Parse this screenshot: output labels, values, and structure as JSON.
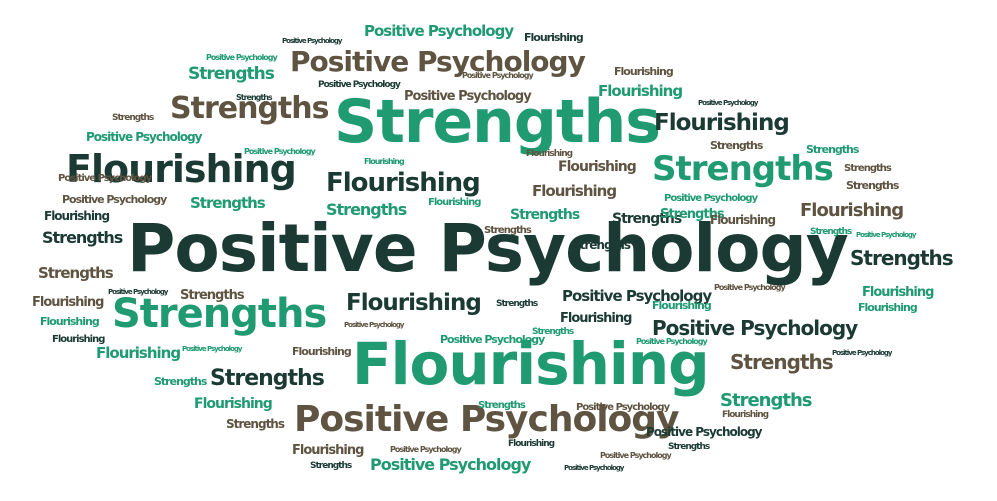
{
  "word_cloud": {
    "words": [
      {
        "text": "Positive Psychology",
        "color": "#1b3a33"
      },
      {
        "text": "Strengths",
        "color": "#1f9a71"
      },
      {
        "text": "Flourishing",
        "color": "#1f9a71"
      },
      {
        "text": "Positive Psychology",
        "color": "#5f5442"
      },
      {
        "text": "Flourishing",
        "color": "#1b3a33"
      },
      {
        "text": "Strengths",
        "color": "#1f9a71"
      },
      {
        "text": "Strengths",
        "color": "#1f9a71"
      },
      {
        "text": "Positive Psychology",
        "color": "#5f5442"
      },
      {
        "text": "Strengths",
        "color": "#5f5442"
      },
      {
        "text": "Flourishing",
        "color": "#1b3a33"
      },
      {
        "text": "Flourishing",
        "color": "#1b3a33"
      },
      {
        "text": "Flourishing",
        "color": "#1b3a33"
      },
      {
        "text": "Positive Psychology",
        "color": "#1b3a33"
      },
      {
        "text": "Strengths",
        "color": "#1b3a33"
      },
      {
        "text": "Strengths",
        "color": "#5f5442"
      },
      {
        "text": "Strengths",
        "color": "#1b3a33"
      },
      {
        "text": "Flourishing",
        "color": "#5f5442"
      },
      {
        "text": "Strengths",
        "color": "#1f9a71"
      },
      {
        "text": "Positive Psychology",
        "color": "#1f9a71"
      },
      {
        "text": "Positive Psychology",
        "color": "#1f9a71"
      },
      {
        "text": "Strengths",
        "color": "#1f9a71"
      },
      {
        "text": "Flourishing",
        "color": "#1f9a71"
      },
      {
        "text": "Positive Psychology",
        "color": "#1b3a33"
      },
      {
        "text": "Flourishing",
        "color": "#5f5442"
      },
      {
        "text": "Strengths",
        "color": "#1b3a33"
      },
      {
        "text": "Flourishing",
        "color": "#1f9a71"
      },
      {
        "text": "Flourishing",
        "color": "#1f9a71"
      },
      {
        "text": "Strengths",
        "color": "#1f9a71"
      },
      {
        "text": "Strengths",
        "color": "#1f9a71"
      },
      {
        "text": "Flourishing",
        "color": "#5f5442"
      },
      {
        "text": "Positive Psychology",
        "color": "#5f5442"
      },
      {
        "text": "Strengths",
        "color": "#1b3a33"
      },
      {
        "text": "Strengths",
        "color": "#5f5442"
      },
      {
        "text": "Strengths",
        "color": "#1b3a33"
      },
      {
        "text": "Flourishing",
        "color": "#1b3a33"
      },
      {
        "text": "Flourishing",
        "color": "#1f9a71"
      },
      {
        "text": "Flourishing",
        "color": "#5f5442"
      },
      {
        "text": "Flourishing",
        "color": "#1f9a71"
      },
      {
        "text": "Strengths",
        "color": "#1f9a71"
      },
      {
        "text": "Flourishing",
        "color": "#1f9a71"
      },
      {
        "text": "Strengths",
        "color": "#5f5442"
      },
      {
        "text": "Strengths",
        "color": "#1f9a71"
      },
      {
        "text": "Positive Psychology",
        "color": "#1f9a71"
      },
      {
        "text": "Flourishing",
        "color": "#5f5442"
      },
      {
        "text": "Strengths",
        "color": "#1b3a33"
      },
      {
        "text": "Strengths",
        "color": "#1f9a71"
      },
      {
        "text": "Flourishing",
        "color": "#5f5442"
      },
      {
        "text": "Flourishing",
        "color": "#1b3a33"
      },
      {
        "text": "Strengths",
        "color": "#5f5442"
      },
      {
        "text": "Strengths",
        "color": "#5f5442"
      },
      {
        "text": "Positive Psychology",
        "color": "#1b3a33"
      },
      {
        "text": "Strengths",
        "color": "#5f5442"
      },
      {
        "text": "Flourishing",
        "color": "#5f5442"
      },
      {
        "text": "Flourishing",
        "color": "#1b3a33"
      },
      {
        "text": "Positive Psychology",
        "color": "#1f9a71"
      },
      {
        "text": "Positive Psychology",
        "color": "#5f5442"
      },
      {
        "text": "Strengths",
        "color": "#5f5442"
      },
      {
        "text": "Strengths",
        "color": "#1f9a71"
      },
      {
        "text": "Flourishing",
        "color": "#1f9a71"
      },
      {
        "text": "Flourishing",
        "color": "#1b3a33"
      },
      {
        "text": "Positive Psychology",
        "color": "#5f5442"
      },
      {
        "text": "Strengths",
        "color": "#1f9a71"
      },
      {
        "text": "Positive Psychology",
        "color": "#1f9a71"
      },
      {
        "text": "Positive Psychology",
        "color": "#5f5442"
      },
      {
        "text": "Positive Psychology",
        "color": "#1b3a33"
      },
      {
        "text": "Strengths",
        "color": "#1b3a33"
      },
      {
        "text": "Flourishing",
        "color": "#1f9a71"
      },
      {
        "text": "Flourishing",
        "color": "#5f5442"
      },
      {
        "text": "Strengths",
        "color": "#1f9a71"
      },
      {
        "text": "Strengths",
        "color": "#1b3a33"
      },
      {
        "text": "Positive Psychology",
        "color": "#5f5442"
      },
      {
        "text": "Positive Psychology",
        "color": "#1f9a71"
      },
      {
        "text": "Positive Psychology",
        "color": "#1f9a71"
      },
      {
        "text": "Positive Psychology",
        "color": "#5f5442"
      },
      {
        "text": "Positive Psychology",
        "color": "#5f5442"
      },
      {
        "text": "Positive Psychology",
        "color": "#1b3a33"
      },
      {
        "text": "Positive Psychology",
        "color": "#1f9a71"
      },
      {
        "text": "Positive Psychology",
        "color": "#1b3a33"
      },
      {
        "text": "Positive Psychology",
        "color": "#1b3a33"
      },
      {
        "text": "Flourishing",
        "color": "#5f5442"
      },
      {
        "text": "Flourishing",
        "color": "#1b3a33"
      },
      {
        "text": "Flourishing",
        "color": "#5f5442"
      },
      {
        "text": "Strengths",
        "color": "#1b3a33"
      },
      {
        "text": "Strengths",
        "color": "#1b3a33"
      },
      {
        "text": "Strengths",
        "color": "#5f5442"
      },
      {
        "text": "Positive Psychology",
        "color": "#1f9a71"
      },
      {
        "text": "Flourishing",
        "color": "#1f9a71"
      },
      {
        "text": "Strengths",
        "color": "#1f9a71"
      },
      {
        "text": "Positive Psychology",
        "color": "#1b3a33"
      },
      {
        "text": "Positive Psychology",
        "color": "#5f5442"
      },
      {
        "text": "Positive Psychology",
        "color": "#1b3a33"
      },
      {
        "text": "Positive Psychology",
        "color": "#1f9a71"
      },
      {
        "text": "Positive Psychology",
        "color": "#5f5442"
      }
    ]
  }
}
